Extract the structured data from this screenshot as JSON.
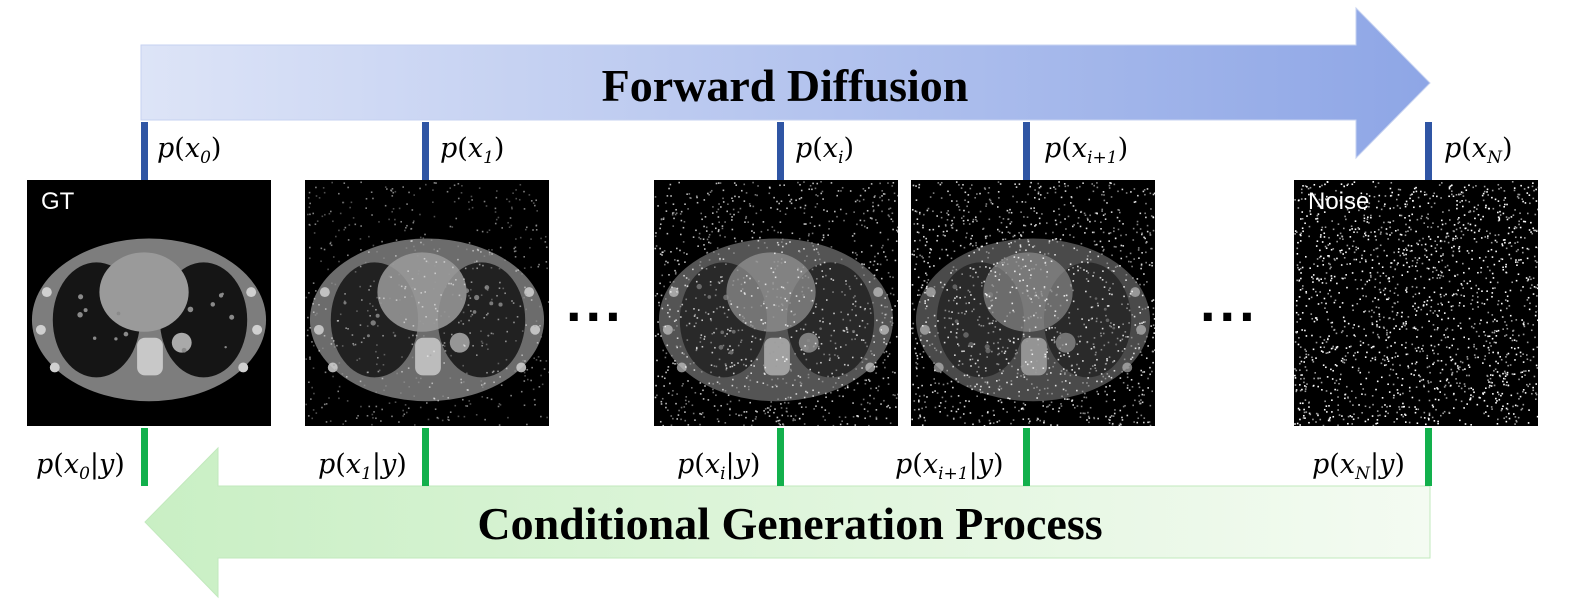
{
  "forward_arrow": {
    "label": "Forward Diffusion"
  },
  "reverse_arrow": {
    "label": "Conditional Generation Process"
  },
  "colors": {
    "forward_tick": "#2f55a4",
    "reverse_tick": "#12b04c",
    "forward_arrow_start": "#dde4f7",
    "forward_arrow_end": "#8ea6e6",
    "reverse_arrow_start": "#c9efc4",
    "reverse_arrow_end": "#f4fbf2"
  },
  "steps": [
    {
      "forward": {
        "var": "x",
        "sub": "0"
      },
      "reverse": {
        "var": "x",
        "sub": "0",
        "cond": "y"
      },
      "image_label": "GT",
      "noise_level": 0.0
    },
    {
      "forward": {
        "var": "x",
        "sub": "1"
      },
      "reverse": {
        "var": "x",
        "sub": "1",
        "cond": "y"
      },
      "image_label": "",
      "noise_level": 0.25
    },
    {
      "forward": {
        "var": "x",
        "sub": "i"
      },
      "reverse": {
        "var": "x",
        "sub": "i",
        "cond": "y"
      },
      "image_label": "",
      "noise_level": 0.6
    },
    {
      "forward": {
        "var": "x",
        "sub": "i+1"
      },
      "reverse": {
        "var": "x",
        "sub": "i+1",
        "cond": "y"
      },
      "image_label": "",
      "noise_level": 0.75
    },
    {
      "forward": {
        "var": "x",
        "sub": "N"
      },
      "reverse": {
        "var": "x",
        "sub": "N",
        "cond": "y"
      },
      "image_label": "Noise",
      "noise_level": 1.0
    }
  ],
  "ellipses": [
    "...",
    "..."
  ]
}
